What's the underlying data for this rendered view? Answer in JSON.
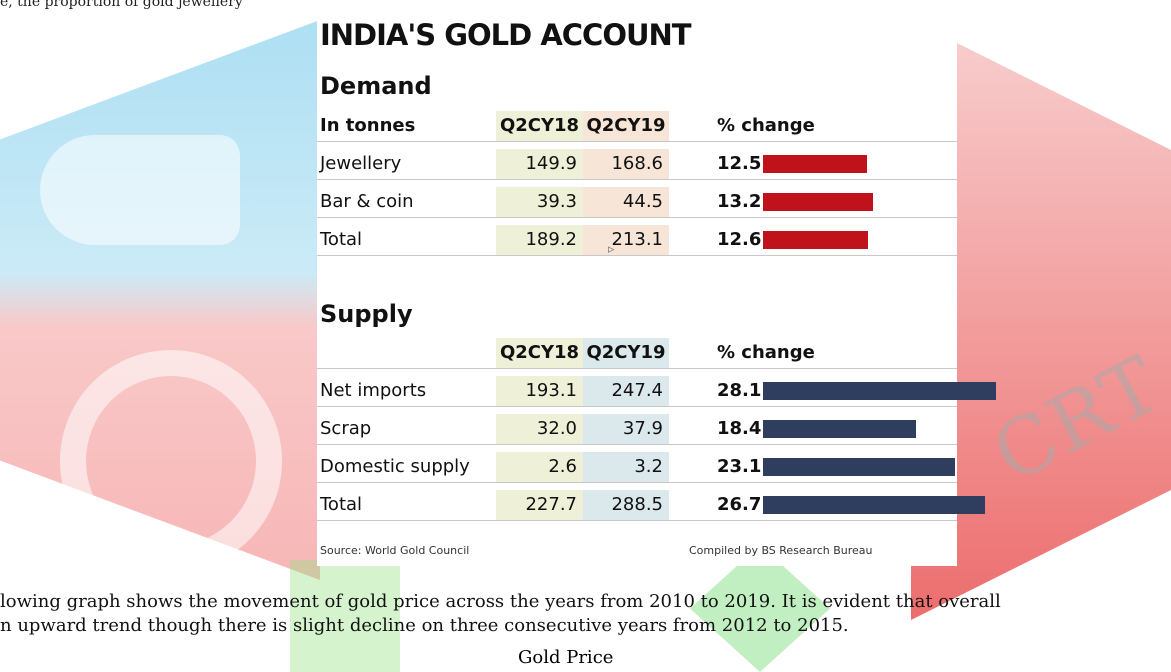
{
  "intro_text": "e, the proportion of gold jewellery",
  "title": "INDIA'S GOLD ACCOUNT",
  "demand": {
    "heading": "Demand",
    "columns": [
      "In tonnes",
      "Q2CY18",
      "Q2CY19",
      "% change"
    ],
    "rows": [
      {
        "label": "Jewellery",
        "q2cy18": "149.9",
        "q2cy19": "168.6",
        "pct": "12.5",
        "pct_value": 12.5
      },
      {
        "label": "Bar & coin",
        "q2cy18": "39.3",
        "q2cy19": "44.5",
        "pct": "13.2",
        "pct_value": 13.2
      },
      {
        "label": "Total",
        "q2cy18": "189.2",
        "q2cy19": "213.1",
        "pct": "12.6",
        "pct_value": 12.6
      }
    ],
    "bar_color": "#c0121b"
  },
  "supply": {
    "heading": "Supply",
    "columns": [
      "",
      "Q2CY18",
      "Q2CY19",
      "% change"
    ],
    "rows": [
      {
        "label": "Net imports",
        "q2cy18": "193.1",
        "q2cy19": "247.4",
        "pct": "28.1",
        "pct_value": 28.1
      },
      {
        "label": "Scrap",
        "q2cy18": "32.0",
        "q2cy19": "37.9",
        "pct": "18.4",
        "pct_value": 18.4
      },
      {
        "label": "Domestic supply",
        "q2cy18": "2.6",
        "q2cy19": "3.2",
        "pct": "23.1",
        "pct_value": 23.1
      },
      {
        "label": "Total",
        "q2cy18": "227.7",
        "q2cy19": "288.5",
        "pct": "26.7",
        "pct_value": 26.7
      }
    ],
    "bar_color": "#2f3e5e"
  },
  "source": "Source: World Gold Council",
  "compiled": "Compiled by BS Research Bureau",
  "caption_line1": "lowing graph shows the movement of gold price across the years from 2010 to 2019. It is evident that overall",
  "caption_line2": "n upward trend though there is slight decline on three consecutive years from 2012 to 2015.",
  "chart_heading": "Gold Price",
  "watermark_text": "CRT"
}
